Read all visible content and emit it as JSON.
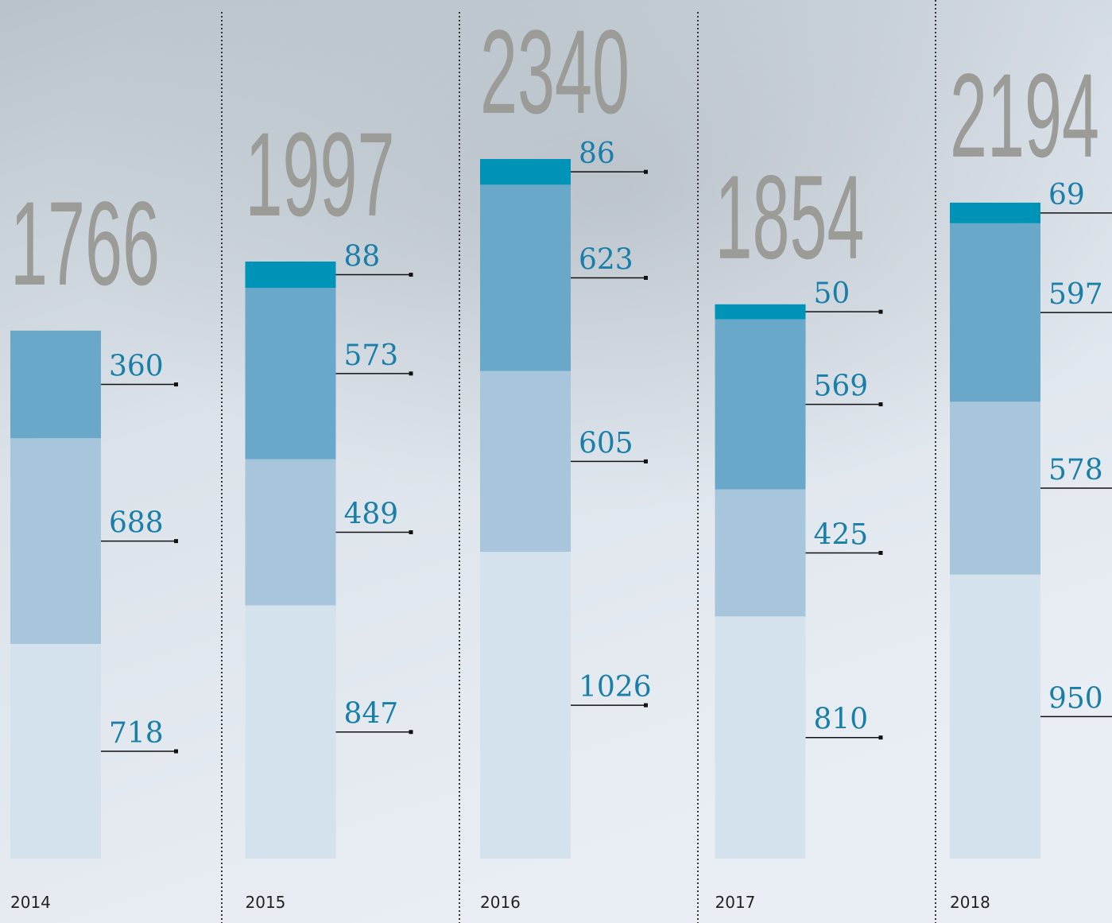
{
  "chart_data": {
    "type": "stacked-bar",
    "categories": [
      "2014",
      "2015",
      "2016",
      "2017",
      "2018"
    ],
    "totals": [
      1766,
      1997,
      2340,
      1854,
      2194
    ],
    "series": [
      {
        "color": "#d4e2ed",
        "values": [
          718,
          847,
          1026,
          810,
          950
        ]
      },
      {
        "color": "#a7c5db",
        "values": [
          688,
          489,
          605,
          425,
          578
        ]
      },
      {
        "color": "#6aa8ca",
        "values": [
          360,
          573,
          623,
          569,
          597
        ]
      },
      {
        "color": "#0093b8",
        "values": [
          null,
          88,
          86,
          50,
          69
        ]
      }
    ]
  }
}
